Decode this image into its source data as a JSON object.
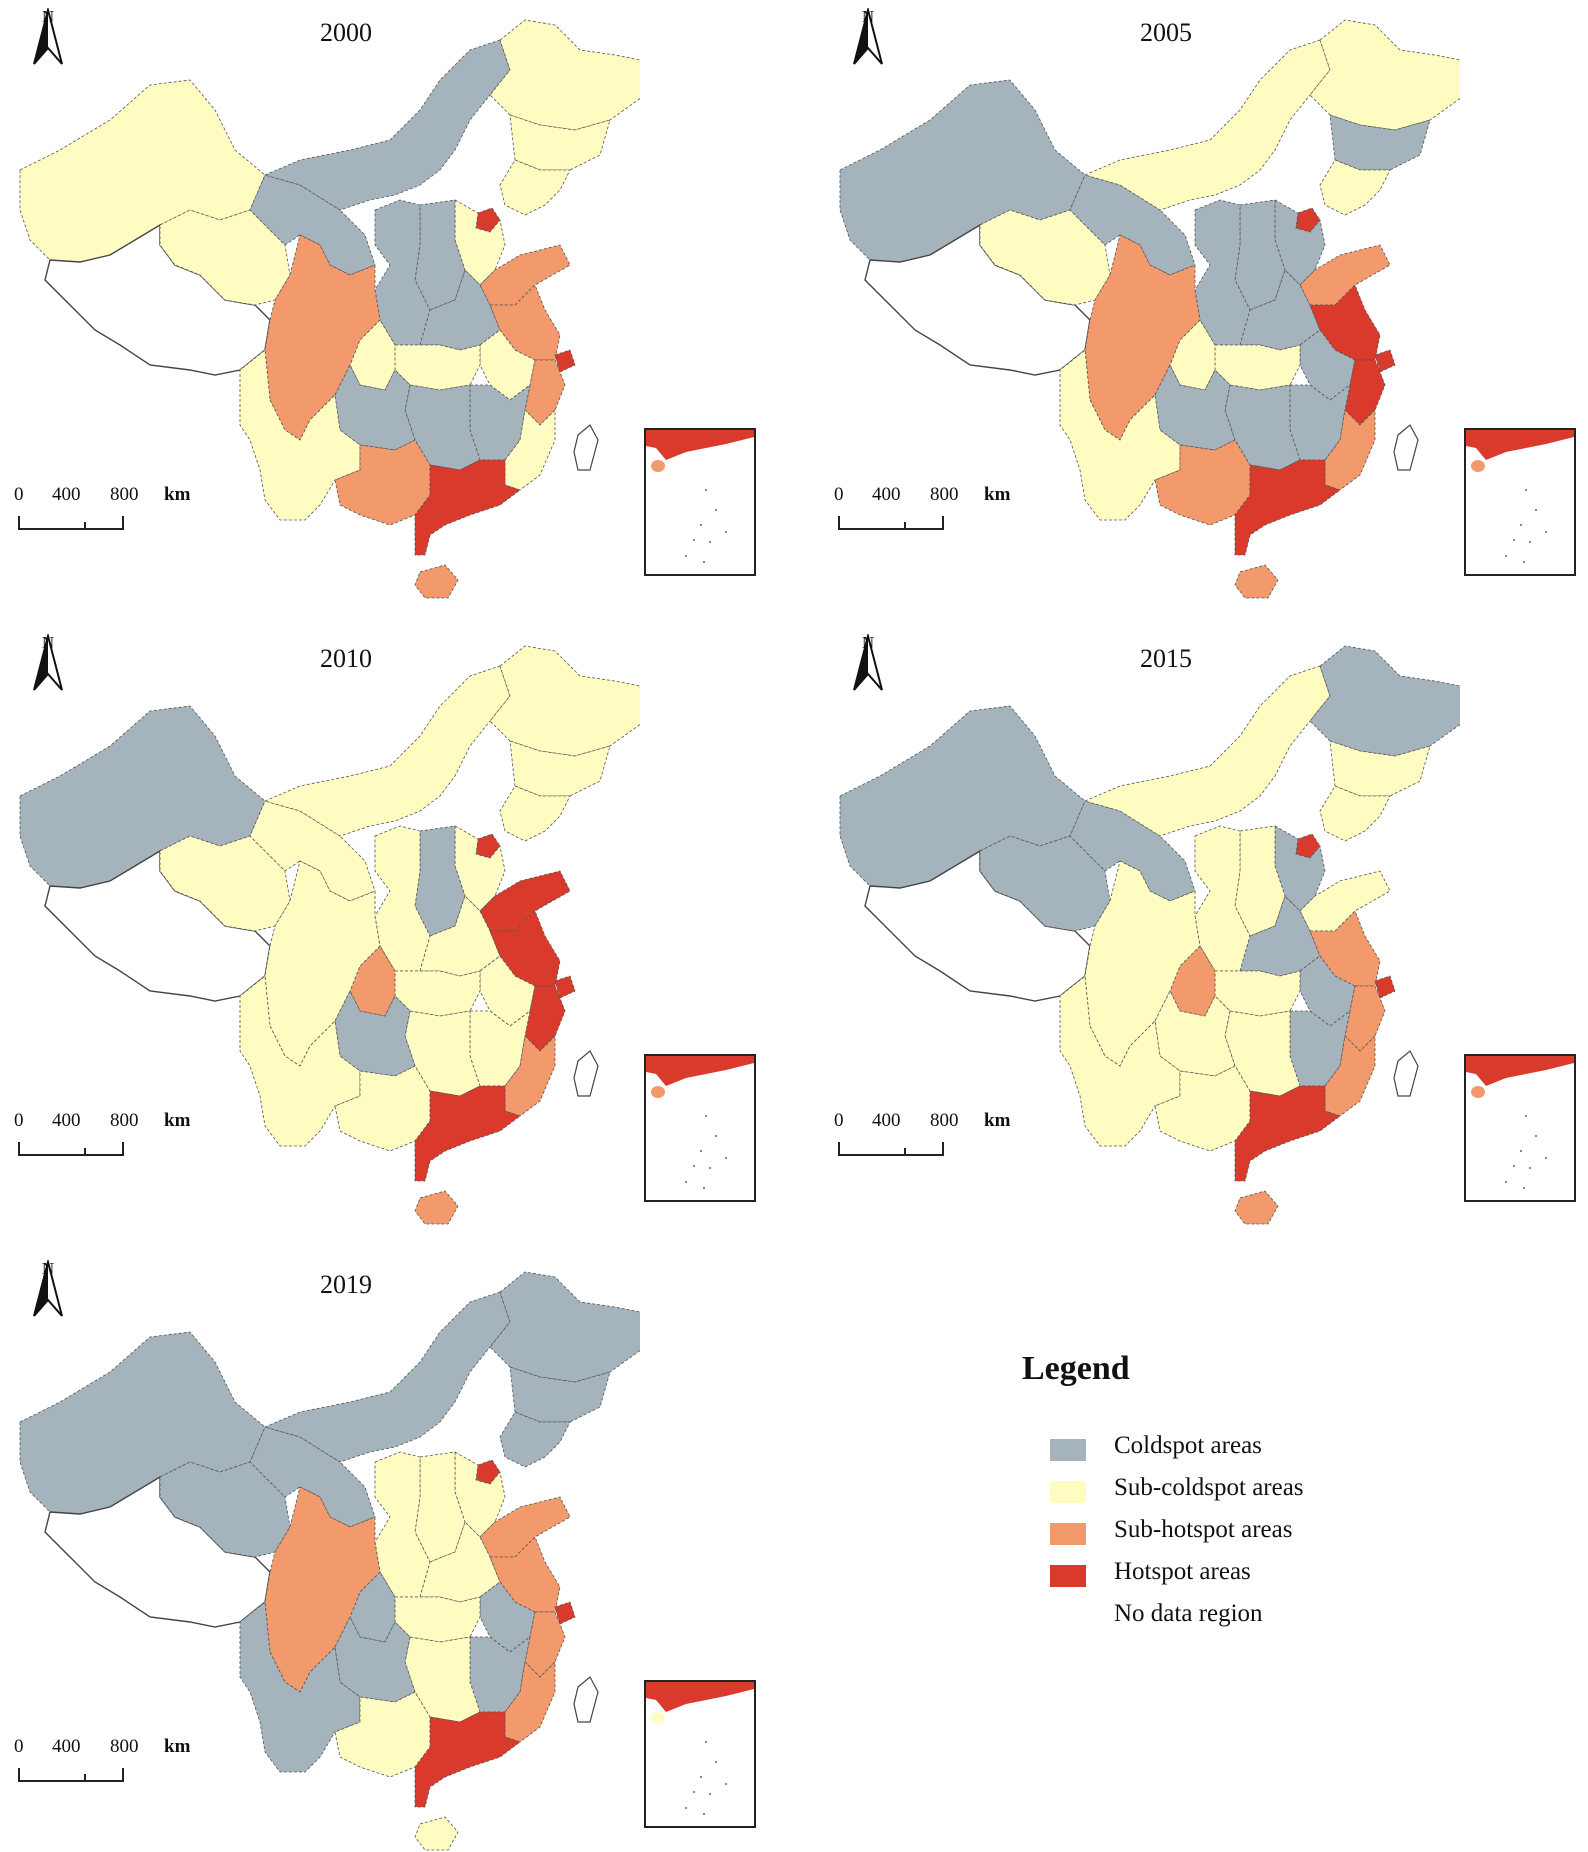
{
  "colors": {
    "coldspot": "#a4b3bc",
    "sub_coldspot": "#fffcc2",
    "sub_hotspot": "#f29a6b",
    "hotspot": "#d93a2b",
    "no_data": "#ffffff",
    "border": "#555555"
  },
  "north_label": "N",
  "scale": {
    "ticks": [
      "0",
      "400",
      "800"
    ],
    "unit": "km"
  },
  "maps": [
    {
      "year": "2000",
      "regions": {
        "xinjiang": "sub_coldspot",
        "tibet": "no_data",
        "qinghai": "sub_coldspot",
        "gansu": "coldspot",
        "inner_mongolia": "coldspot",
        "heilongjiang": "sub_coldspot",
        "jilin": "sub_coldspot",
        "liaoning": "sub_coldspot",
        "beijing": "hotspot",
        "hebei": "sub_coldspot",
        "shandong": "sub_hotspot",
        "shanxi": "coldspot",
        "shaanxi": "coldspot",
        "henan": "coldspot",
        "sichuan": "sub_hotspot",
        "chongqing": "sub_coldspot",
        "hubei": "sub_coldspot",
        "anhui": "sub_coldspot",
        "jiangsu": "sub_hotspot",
        "shanghai": "hotspot",
        "zhejiang": "sub_hotspot",
        "yunnan": "sub_coldspot",
        "guizhou": "coldspot",
        "hunan": "coldspot",
        "jiangxi": "coldspot",
        "fujian": "sub_coldspot",
        "guangxi": "sub_hotspot",
        "guangdong": "hotspot",
        "hainan": "sub_hotspot"
      }
    },
    {
      "year": "2005",
      "regions": {
        "xinjiang": "coldspot",
        "tibet": "no_data",
        "qinghai": "sub_coldspot",
        "gansu": "coldspot",
        "inner_mongolia": "sub_coldspot",
        "heilongjiang": "sub_coldspot",
        "jilin": "coldspot",
        "liaoning": "sub_coldspot",
        "beijing": "hotspot",
        "hebei": "coldspot",
        "shandong": "sub_hotspot",
        "shanxi": "coldspot",
        "shaanxi": "coldspot",
        "henan": "coldspot",
        "sichuan": "sub_hotspot",
        "chongqing": "sub_coldspot",
        "hubei": "sub_coldspot",
        "anhui": "coldspot",
        "jiangsu": "hotspot",
        "shanghai": "hotspot",
        "zhejiang": "hotspot",
        "yunnan": "sub_coldspot",
        "guizhou": "coldspot",
        "hunan": "coldspot",
        "jiangxi": "coldspot",
        "fujian": "sub_hotspot",
        "guangxi": "sub_hotspot",
        "guangdong": "hotspot",
        "hainan": "sub_hotspot"
      }
    },
    {
      "year": "2010",
      "regions": {
        "xinjiang": "coldspot",
        "tibet": "no_data",
        "qinghai": "sub_coldspot",
        "gansu": "sub_coldspot",
        "inner_mongolia": "sub_coldspot",
        "heilongjiang": "sub_coldspot",
        "jilin": "sub_coldspot",
        "liaoning": "sub_coldspot",
        "beijing": "hotspot",
        "hebei": "sub_coldspot",
        "shandong": "hotspot",
        "shanxi": "coldspot",
        "shaanxi": "sub_coldspot",
        "henan": "sub_coldspot",
        "sichuan": "sub_coldspot",
        "chongqing": "sub_hotspot",
        "hubei": "sub_coldspot",
        "anhui": "sub_coldspot",
        "jiangsu": "hotspot",
        "shanghai": "hotspot",
        "zhejiang": "hotspot",
        "yunnan": "sub_coldspot",
        "guizhou": "coldspot",
        "hunan": "sub_coldspot",
        "jiangxi": "sub_coldspot",
        "fujian": "sub_hotspot",
        "guangxi": "sub_coldspot",
        "guangdong": "hotspot",
        "hainan": "sub_hotspot"
      }
    },
    {
      "year": "2015",
      "regions": {
        "xinjiang": "coldspot",
        "tibet": "no_data",
        "qinghai": "coldspot",
        "gansu": "coldspot",
        "inner_mongolia": "sub_coldspot",
        "heilongjiang": "coldspot",
        "jilin": "sub_coldspot",
        "liaoning": "sub_coldspot",
        "beijing": "hotspot",
        "hebei": "coldspot",
        "shandong": "sub_coldspot",
        "shanxi": "sub_coldspot",
        "shaanxi": "sub_coldspot",
        "henan": "coldspot",
        "sichuan": "sub_coldspot",
        "chongqing": "sub_hotspot",
        "hubei": "sub_coldspot",
        "anhui": "coldspot",
        "jiangsu": "sub_hotspot",
        "shanghai": "hotspot",
        "zhejiang": "sub_hotspot",
        "yunnan": "sub_coldspot",
        "guizhou": "sub_coldspot",
        "hunan": "sub_coldspot",
        "jiangxi": "coldspot",
        "fujian": "sub_hotspot",
        "guangxi": "sub_coldspot",
        "guangdong": "hotspot",
        "hainan": "sub_hotspot"
      }
    },
    {
      "year": "2019",
      "regions": {
        "xinjiang": "coldspot",
        "tibet": "no_data",
        "qinghai": "coldspot",
        "gansu": "coldspot",
        "inner_mongolia": "coldspot",
        "heilongjiang": "coldspot",
        "jilin": "coldspot",
        "liaoning": "coldspot",
        "beijing": "hotspot",
        "hebei": "sub_coldspot",
        "shandong": "sub_hotspot",
        "shanxi": "sub_coldspot",
        "shaanxi": "sub_coldspot",
        "henan": "sub_coldspot",
        "sichuan": "sub_hotspot",
        "chongqing": "coldspot",
        "hubei": "sub_coldspot",
        "anhui": "coldspot",
        "jiangsu": "sub_hotspot",
        "shanghai": "hotspot",
        "zhejiang": "sub_hotspot",
        "yunnan": "coldspot",
        "guizhou": "coldspot",
        "hunan": "sub_coldspot",
        "jiangxi": "coldspot",
        "fujian": "sub_hotspot",
        "guangxi": "sub_coldspot",
        "guangdong": "hotspot",
        "hainan": "sub_coldspot"
      }
    }
  ],
  "legend": {
    "title": "Legend",
    "items": [
      {
        "label": "Coldspot areas",
        "class": "coldspot"
      },
      {
        "label": "Sub-coldspot areas",
        "class": "sub_coldspot"
      },
      {
        "label": "Sub-hotspot areas",
        "class": "sub_hotspot"
      },
      {
        "label": "Hotspot areas",
        "class": "hotspot"
      },
      {
        "label": "No data region",
        "class": "no_data"
      }
    ]
  }
}
